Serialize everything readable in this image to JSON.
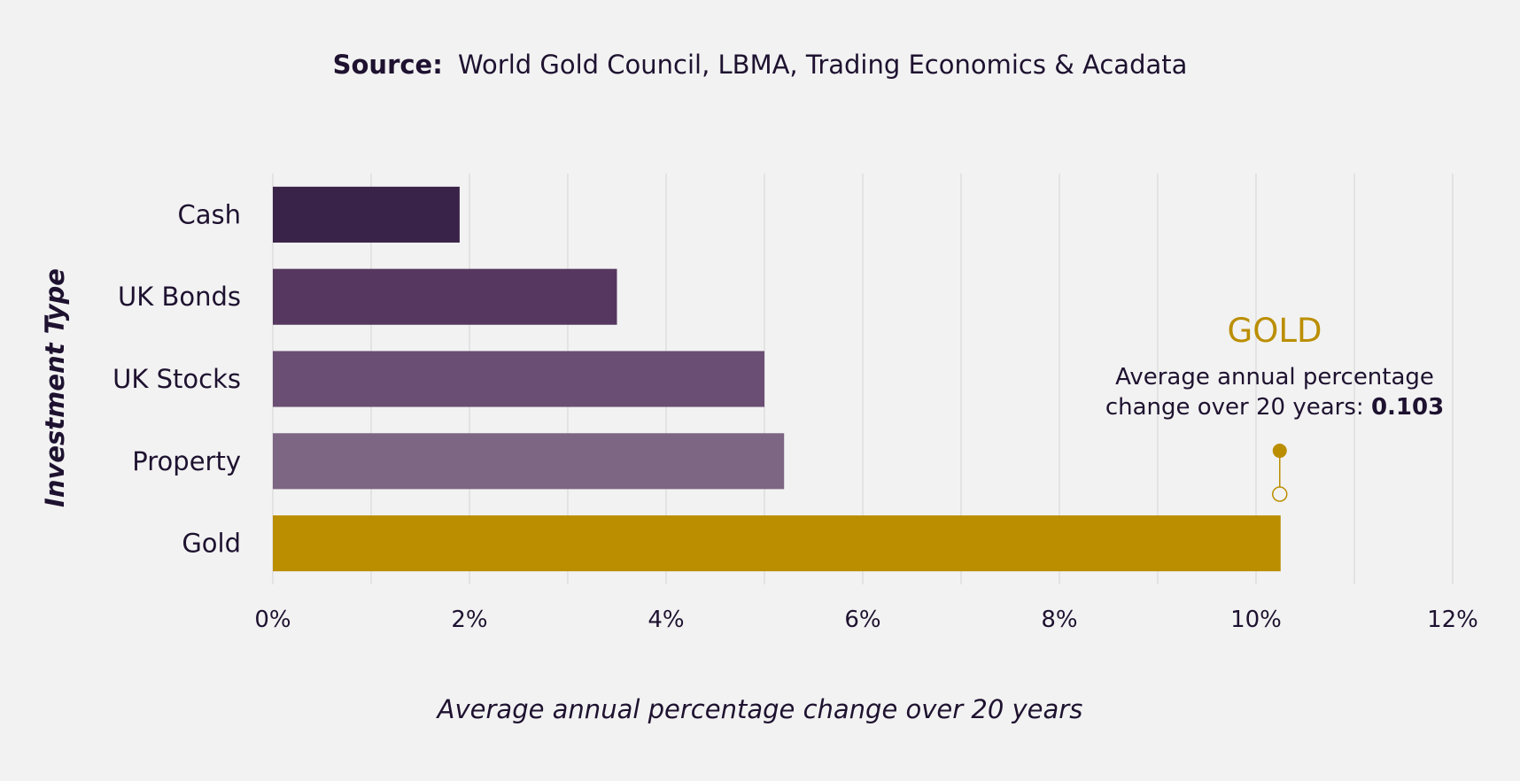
{
  "chart_data": {
    "type": "bar",
    "orientation": "horizontal",
    "source_label": "Source:",
    "source_text": "World Gold Council, LBMA, Trading Economics & Acadata",
    "xlabel": "Average annual percentage change over 20 years",
    "ylabel": "Investment Type",
    "xlim": [
      0,
      12
    ],
    "x_ticks": [
      "0%",
      "2%",
      "4%",
      "6%",
      "8%",
      "10%",
      "12%"
    ],
    "categories": [
      "Cash",
      "UK Bonds",
      "UK Stocks",
      "Property",
      "Gold"
    ],
    "values": [
      1.9,
      3.5,
      5.0,
      5.2,
      10.25
    ],
    "colors": [
      "#3a2349",
      "#55375f",
      "#6a4e73",
      "#7d6584",
      "#bb8e00"
    ],
    "grid": "vertical",
    "annotation": {
      "title": "GOLD",
      "line1": "Average annual percentage",
      "line2_prefix": "change over 20 years: ",
      "line2_value": "0.103",
      "color": "#bb8e00"
    }
  }
}
